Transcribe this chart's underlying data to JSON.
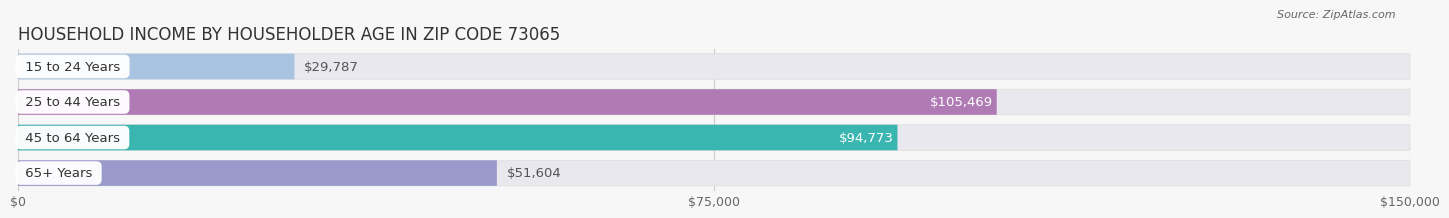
{
  "title": "HOUSEHOLD INCOME BY HOUSEHOLDER AGE IN ZIP CODE 73065",
  "source": "Source: ZipAtlas.com",
  "categories": [
    "15 to 24 Years",
    "25 to 44 Years",
    "45 to 64 Years",
    "65+ Years"
  ],
  "values": [
    29787,
    105469,
    94773,
    51604
  ],
  "labels": [
    "$29,787",
    "$105,469",
    "$94,773",
    "$51,604"
  ],
  "bar_colors": [
    "#a8c4e0",
    "#b07ab5",
    "#3ab5b0",
    "#9999cc"
  ],
  "bar_bg_color": "#e8e8ee",
  "xlim": [
    0,
    150000
  ],
  "xticks": [
    0,
    75000,
    150000
  ],
  "xticklabels": [
    "$0",
    "$75,000",
    "$150,000"
  ],
  "bg_color": "#f7f7f7",
  "bar_height": 0.72,
  "title_fontsize": 12,
  "label_fontsize": 9.5,
  "tick_fontsize": 9,
  "value_label_threshold": 60000,
  "label_pill_color": [
    "#c8dff0",
    "#c8a8d8",
    "#55c8c0",
    "#b0b0e0"
  ]
}
